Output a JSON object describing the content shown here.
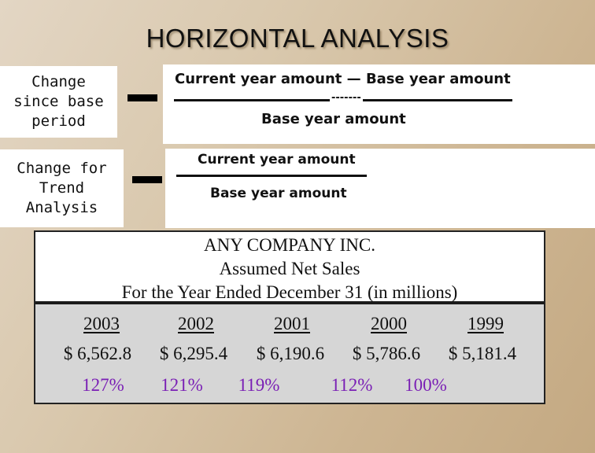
{
  "title": "HORIZONTAL ANALYSIS",
  "change_since_base": {
    "label": "Change\nsince base\nperiod",
    "numerator": "Current year amount — Base year amount",
    "dashes": "-------",
    "denominator": "Base year amount"
  },
  "change_for_trend": {
    "label": "Change for\nTrend\nAnalysis",
    "numerator": "Current year amount",
    "denominator": "Base year amount"
  },
  "table": {
    "company": "ANY COMPANY INC.",
    "subtitle": "Assumed Net Sales",
    "period": "For the Year Ended December 31 (in millions)",
    "years": [
      "2003",
      "2002",
      "2001",
      "2000",
      "1999"
    ],
    "sales": [
      "$ 6,562.8",
      "$ 6,295.4",
      "$ 6,190.6",
      "$ 5,786.6",
      "$ 5,181.4"
    ],
    "percents": [
      "127%",
      "121%",
      "119%",
      "112%",
      "100%"
    ]
  },
  "colors": {
    "percent_text": "#7a1fb5",
    "table_body": "#d6d6d6"
  }
}
